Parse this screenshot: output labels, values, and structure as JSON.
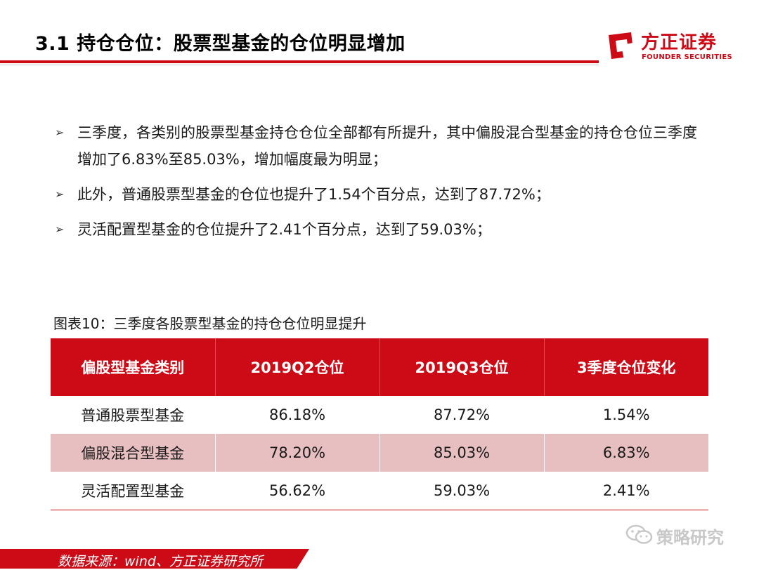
{
  "header": {
    "title": "3.1 持仓仓位：股票型基金的仓位明显增加",
    "logo_cn": "方正证券",
    "logo_en": "FOUNDER SECURITIES",
    "accent_color": "#cc0b17"
  },
  "bullets": [
    {
      "icon": "arrow-right-icon",
      "text": "三季度，各类别的股票型基金持仓仓位全部都有所提升，其中偏股混合型基金的持仓仓位三季度增加了6.83%至85.03%，增加幅度最为明显；"
    },
    {
      "icon": "arrow-right-icon",
      "text": "此外，普通股票型基金的仓位也提升了1.54个百分点，达到了87.72%；"
    },
    {
      "icon": "arrow-right-icon",
      "text": "灵活配置型基金的仓位提升了2.41个百分点，达到了59.03%；"
    }
  ],
  "table": {
    "caption": "图表10：三季度各股票型基金的持仓仓位明显提升",
    "headers": [
      "偏股型基金类别",
      "2019Q2仓位",
      "2019Q3仓位",
      "3季度仓位变化"
    ],
    "rows": [
      [
        "普通股票型基金",
        "86.18%",
        "87.72%",
        "1.54%"
      ],
      [
        "偏股混合型基金",
        "78.20%",
        "85.03%",
        "6.83%"
      ],
      [
        "灵活配置型基金",
        "56.62%",
        "59.03%",
        "2.41%"
      ]
    ]
  },
  "watermark": {
    "text": "策略研究",
    "icon": "wechat-icon"
  },
  "footer": {
    "source": "数据来源：wind、方正证券研究所"
  }
}
